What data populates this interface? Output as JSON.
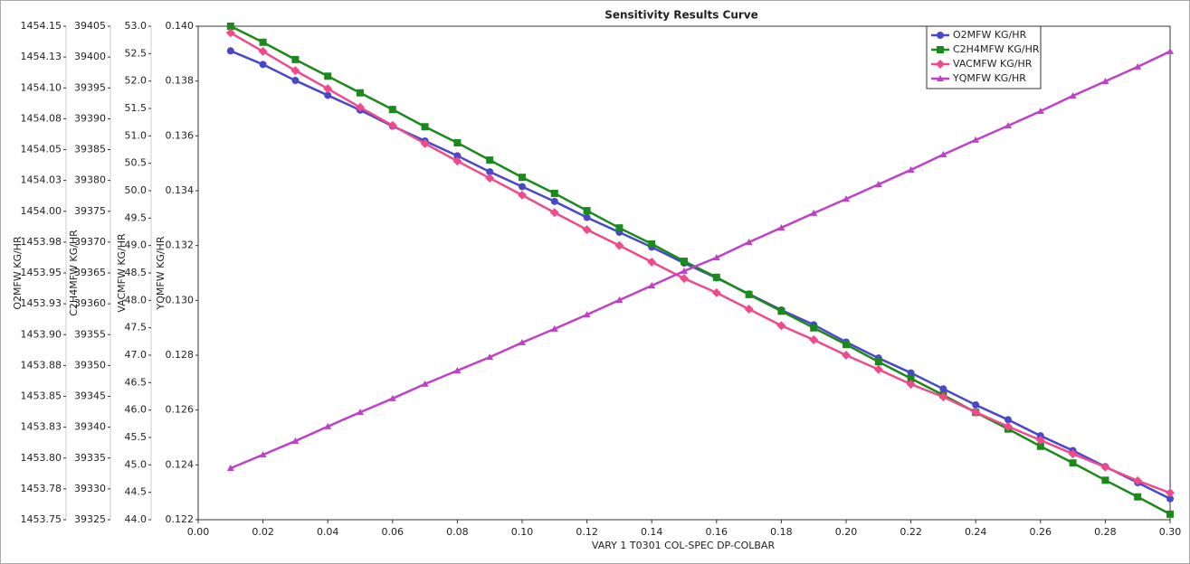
{
  "chart_data": {
    "type": "line",
    "title": "Sensitivity Results Curve",
    "x_label": "VARY   1 T0301 COL-SPEC DP-COLBAR",
    "x": [
      0.01,
      0.02,
      0.03,
      0.04,
      0.05,
      0.06,
      0.07,
      0.08,
      0.09,
      0.1,
      0.11,
      0.12,
      0.13,
      0.14,
      0.15,
      0.16,
      0.17,
      0.18,
      0.19,
      0.2,
      0.21,
      0.22,
      0.23,
      0.24,
      0.25,
      0.26,
      0.27,
      0.28,
      0.29,
      0.3
    ],
    "xlim": [
      0,
      0.3
    ],
    "xticks": [
      {
        "value": 0,
        "label": "0.00"
      },
      {
        "value": 0.02,
        "label": "0.02"
      },
      {
        "value": 0.04,
        "label": "0.04"
      },
      {
        "value": 0.06,
        "label": "0.06"
      },
      {
        "value": 0.08,
        "label": "0.08"
      },
      {
        "value": 0.1,
        "label": "0.10"
      },
      {
        "value": 0.12,
        "label": "0.12"
      },
      {
        "value": 0.14,
        "label": "0.14"
      },
      {
        "value": 0.16,
        "label": "0.16"
      },
      {
        "value": 0.18,
        "label": "0.18"
      },
      {
        "value": 0.2,
        "label": "0.20"
      },
      {
        "value": 0.22,
        "label": "0.22"
      },
      {
        "value": 0.24,
        "label": "0.24"
      },
      {
        "value": 0.26,
        "label": "0.26"
      },
      {
        "value": 0.28,
        "label": "0.28"
      },
      {
        "value": 0.3,
        "label": "0.30"
      }
    ],
    "axes": [
      {
        "label": "O2MFW KG/HR",
        "ylim": [
          1453.75,
          1454.15
        ],
        "yticks": [
          {
            "value": 1453.75,
            "label": "1453.75"
          },
          {
            "value": 1453.775,
            "label": "1453.78"
          },
          {
            "value": 1453.8,
            "label": "1453.80"
          },
          {
            "value": 1453.825,
            "label": "1453.83"
          },
          {
            "value": 1453.85,
            "label": "1453.85"
          },
          {
            "value": 1453.875,
            "label": "1453.88"
          },
          {
            "value": 1453.9,
            "label": "1453.90"
          },
          {
            "value": 1453.925,
            "label": "1453.93"
          },
          {
            "value": 1453.95,
            "label": "1453.95"
          },
          {
            "value": 1453.975,
            "label": "1453.98"
          },
          {
            "value": 1454,
            "label": "1454.00"
          },
          {
            "value": 1454.025,
            "label": "1454.03"
          },
          {
            "value": 1454.05,
            "label": "1454.05"
          },
          {
            "value": 1454.075,
            "label": "1454.08"
          },
          {
            "value": 1454.1,
            "label": "1454.10"
          },
          {
            "value": 1454.125,
            "label": "1454.13"
          },
          {
            "value": 1454.15,
            "label": "1454.15"
          }
        ]
      },
      {
        "label": "C2H4MFW KG/HR",
        "ylim": [
          39325,
          39405
        ],
        "yticks": [
          39325,
          39330,
          39335,
          39340,
          39345,
          39350,
          39355,
          39360,
          39365,
          39370,
          39375,
          39380,
          39385,
          39390,
          39395,
          39400,
          39405
        ]
      },
      {
        "label": "VACMFW KG/HR",
        "ylim": [
          44,
          53
        ],
        "yticks": [
          {
            "value": 44,
            "label": "44.0"
          },
          {
            "value": 44.5,
            "label": "44.5"
          },
          {
            "value": 45,
            "label": "45.0"
          },
          {
            "value": 45.5,
            "label": "45.5"
          },
          {
            "value": 46,
            "label": "46.0"
          },
          {
            "value": 46.5,
            "label": "46.5"
          },
          {
            "value": 47,
            "label": "47.0"
          },
          {
            "value": 47.5,
            "label": "47.5"
          },
          {
            "value": 48,
            "label": "48.0"
          },
          {
            "value": 48.5,
            "label": "48.5"
          },
          {
            "value": 49,
            "label": "49.0"
          },
          {
            "value": 49.5,
            "label": "49.5"
          },
          {
            "value": 50,
            "label": "50.0"
          },
          {
            "value": 50.5,
            "label": "50.5"
          },
          {
            "value": 51,
            "label": "51.0"
          },
          {
            "value": 51.5,
            "label": "51.5"
          },
          {
            "value": 52,
            "label": "52.0"
          },
          {
            "value": 52.5,
            "label": "52.5"
          },
          {
            "value": 53,
            "label": "53.0"
          }
        ]
      },
      {
        "label": "YQMFW KG/HR",
        "ylim": [
          0.122,
          0.14
        ],
        "yticks": [
          {
            "value": 0.122,
            "label": "0.122"
          },
          {
            "value": 0.124,
            "label": "0.124"
          },
          {
            "value": 0.126,
            "label": "0.126"
          },
          {
            "value": 0.128,
            "label": "0.128"
          },
          {
            "value": 0.13,
            "label": "0.130"
          },
          {
            "value": 0.132,
            "label": "0.132"
          },
          {
            "value": 0.134,
            "label": "0.134"
          },
          {
            "value": 0.136,
            "label": "0.136"
          },
          {
            "value": 0.138,
            "label": "0.138"
          },
          {
            "value": 0.14,
            "label": "0.140"
          }
        ]
      }
    ],
    "series": [
      {
        "name": "O2MFW KG/HR",
        "color": "#4848c8",
        "marker": "circle",
        "axis": 0,
        "values": [
          1454.13,
          1454.119,
          1454.106,
          1454.094,
          1454.082,
          1454.069,
          1454.057,
          1454.045,
          1454.032,
          1454.02,
          1454.008,
          1453.995,
          1453.983,
          1453.971,
          1453.958,
          1453.946,
          1453.933,
          1453.92,
          1453.908,
          1453.894,
          1453.881,
          1453.869,
          1453.856,
          1453.843,
          1453.831,
          1453.818,
          1453.806,
          1453.793,
          1453.78,
          1453.767
        ]
      },
      {
        "name": "C2H4MFW KG/HR",
        "color": "#1a8a1a",
        "marker": "square",
        "axis": 1,
        "values": [
          39405.0,
          39402.4,
          39399.6,
          39396.9,
          39394.2,
          39391.5,
          39388.7,
          39386.1,
          39383.3,
          39380.5,
          39377.9,
          39375.1,
          39372.3,
          39369.7,
          39366.9,
          39364.3,
          39361.5,
          39358.8,
          39356.1,
          39353.4,
          39350.6,
          39347.9,
          39345.2,
          39342.4,
          39339.7,
          39336.9,
          39334.2,
          39331.4,
          39328.7,
          39325.9
        ]
      },
      {
        "name": "VACMFW KG/HR",
        "color": "#f04a8a",
        "marker": "diamond",
        "axis": 2,
        "values": [
          52.88,
          52.54,
          52.19,
          51.86,
          51.52,
          51.19,
          50.86,
          50.54,
          50.23,
          49.92,
          49.6,
          49.29,
          49.0,
          48.7,
          48.4,
          48.14,
          47.84,
          47.54,
          47.28,
          47.0,
          46.74,
          46.47,
          46.24,
          45.96,
          45.7,
          45.45,
          45.2,
          44.96,
          44.71,
          44.49
        ]
      },
      {
        "name": "YQMFW KG/HR",
        "color": "#c040c8",
        "marker": "triangle",
        "axis": 3,
        "values": [
          0.12388,
          0.12437,
          0.12487,
          0.1254,
          0.12592,
          0.12642,
          0.12695,
          0.12744,
          0.12793,
          0.12846,
          0.12896,
          0.12948,
          0.13001,
          0.13054,
          0.13107,
          0.13156,
          0.13212,
          0.13265,
          0.13318,
          0.1337,
          0.13423,
          0.13476,
          0.13532,
          0.13585,
          0.13637,
          0.1369,
          0.13746,
          0.13799,
          0.13852,
          0.13908
        ]
      }
    ]
  }
}
